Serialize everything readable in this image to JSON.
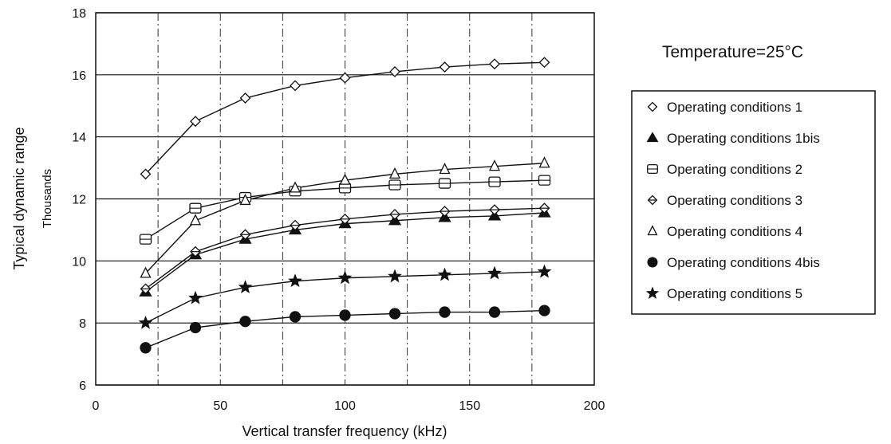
{
  "chart_data": {
    "type": "line",
    "title": "",
    "annotation": "Temperature=25°C",
    "xlabel": "Vertical transfer frequency (kHz)",
    "ylabel": "Typical dynamic range",
    "ylabel_sub": "Thousands",
    "xlim": [
      0,
      200
    ],
    "ylim": [
      6,
      18
    ],
    "xticks": [
      "0",
      "50",
      "100",
      "150",
      "200"
    ],
    "yticks": [
      "6",
      "8",
      "10",
      "12",
      "14",
      "16",
      "18"
    ],
    "grid": "horizontal solid, vertical dash-dot",
    "legend_position": "right",
    "x": [
      20,
      40,
      60,
      80,
      100,
      120,
      140,
      160,
      180
    ],
    "series": [
      {
        "name": "Operating conditions 1",
        "marker": "diamond-open",
        "values": [
          12.8,
          14.5,
          15.25,
          15.65,
          15.9,
          16.1,
          16.25,
          16.35,
          16.4
        ]
      },
      {
        "name": "Operating conditions 1bis",
        "marker": "triangle-filled",
        "values": [
          9.0,
          10.2,
          10.7,
          11.0,
          11.2,
          11.3,
          11.4,
          11.45,
          11.55
        ]
      },
      {
        "name": "Operating conditions 2",
        "marker": "square-open",
        "values": [
          10.7,
          11.7,
          12.05,
          12.25,
          12.35,
          12.45,
          12.5,
          12.55,
          12.6
        ]
      },
      {
        "name": "Operating conditions 3",
        "marker": "diamond-open-cross",
        "values": [
          9.1,
          10.3,
          10.85,
          11.15,
          11.35,
          11.5,
          11.6,
          11.65,
          11.7
        ]
      },
      {
        "name": "Operating conditions 4",
        "marker": "triangle-open",
        "values": [
          9.6,
          11.3,
          11.95,
          12.35,
          12.6,
          12.8,
          12.95,
          13.05,
          13.15
        ]
      },
      {
        "name": "Operating conditions 4bis",
        "marker": "circle-filled",
        "values": [
          7.2,
          7.85,
          8.05,
          8.2,
          8.25,
          8.3,
          8.35,
          8.35,
          8.4
        ]
      },
      {
        "name": "Operating conditions 5",
        "marker": "star-filled",
        "values": [
          8.0,
          8.8,
          9.15,
          9.35,
          9.45,
          9.5,
          9.55,
          9.6,
          9.65
        ]
      }
    ]
  }
}
